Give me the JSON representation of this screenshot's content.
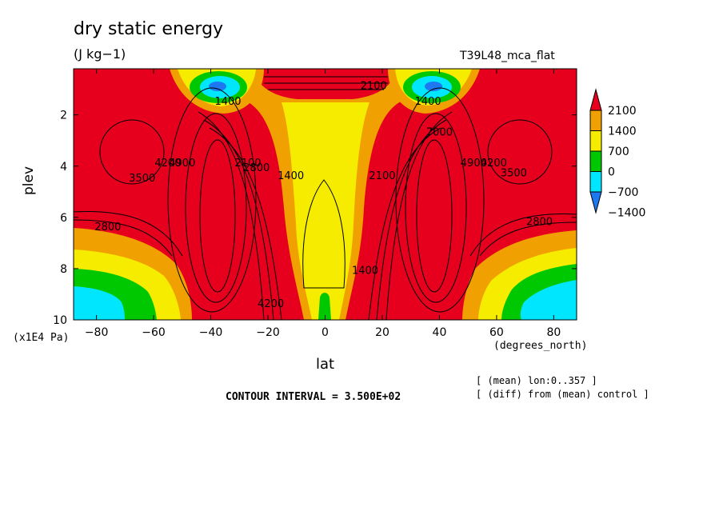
{
  "figure": {
    "title": "dry static energy",
    "units": "(J kg−1)",
    "run_name": "T39L48_mca_flat",
    "x_axis_label": "lat",
    "x_axis_unit": "(degrees_north)",
    "y_axis_label": "plev",
    "y_axis_unit": "(x1E4 Pa)",
    "note_mean": "[ (mean) lon:0..357 ]",
    "note_diff": "[ (diff) from (mean) control ]",
    "contour_interval": "CONTOUR INTERVAL = 3.500E+02"
  },
  "chart_data": {
    "type": "heatmap",
    "title": "dry static energy",
    "subtitle": "(J kg−1)",
    "xlabel": "lat",
    "ylabel": "plev",
    "x_ticks": [
      -80,
      -60,
      -40,
      -20,
      0,
      20,
      40,
      60,
      80
    ],
    "x_tick_labels": [
      "−80",
      "−60",
      "−40",
      "−20",
      "0",
      "20",
      "40",
      "60",
      "80"
    ],
    "y_ticks": [
      2,
      4,
      6,
      8,
      10
    ],
    "y_tick_labels": [
      "2",
      "4",
      "6",
      "8",
      "10"
    ],
    "xlim": [
      -88,
      88
    ],
    "ylim": [
      10,
      0.2
    ],
    "contour_interval": 350,
    "colorbar": {
      "levels": [
        -1400,
        -700,
        0,
        700,
        1400,
        2100
      ],
      "labels": [
        "2100",
        "1400",
        "700",
        "0",
        "−700",
        "−1400"
      ],
      "colors": [
        "#1e78f0",
        "#00e6ff",
        "#00c800",
        "#f5ec00",
        "#f0a000",
        "#e6001e"
      ]
    },
    "contour_labels": [
      {
        "text": "2800",
        "lat": -76,
        "plev": 6.5
      },
      {
        "text": "3500",
        "lat": -64,
        "plev": 4.6
      },
      {
        "text": "4200",
        "lat": -55,
        "plev": 4.0
      },
      {
        "text": "4900",
        "lat": -50,
        "plev": 4.0
      },
      {
        "text": "2100",
        "lat": -27,
        "plev": 4.0
      },
      {
        "text": "2800",
        "lat": -24,
        "plev": 4.2
      },
      {
        "text": "1400",
        "lat": -12,
        "plev": 4.5
      },
      {
        "text": "1400",
        "lat": 14,
        "plev": 8.2
      },
      {
        "text": "2100",
        "lat": 20,
        "plev": 4.5
      },
      {
        "text": "7000",
        "lat": 40,
        "plev": 2.8
      },
      {
        "text": "4900",
        "lat": 52,
        "plev": 4.0
      },
      {
        "text": "4200",
        "lat": 59,
        "plev": 4.0
      },
      {
        "text": "3500",
        "lat": 66,
        "plev": 4.4
      },
      {
        "text": "2800",
        "lat": 75,
        "plev": 6.3
      },
      {
        "text": "1400",
        "lat": 36,
        "plev": 1.6
      },
      {
        "text": "2100",
        "lat": 17,
        "plev": 1.0
      },
      {
        "text": "1400",
        "lat": -34,
        "plev": 1.6
      },
      {
        "text": "4200",
        "lat": -19,
        "plev": 9.5
      }
    ]
  }
}
